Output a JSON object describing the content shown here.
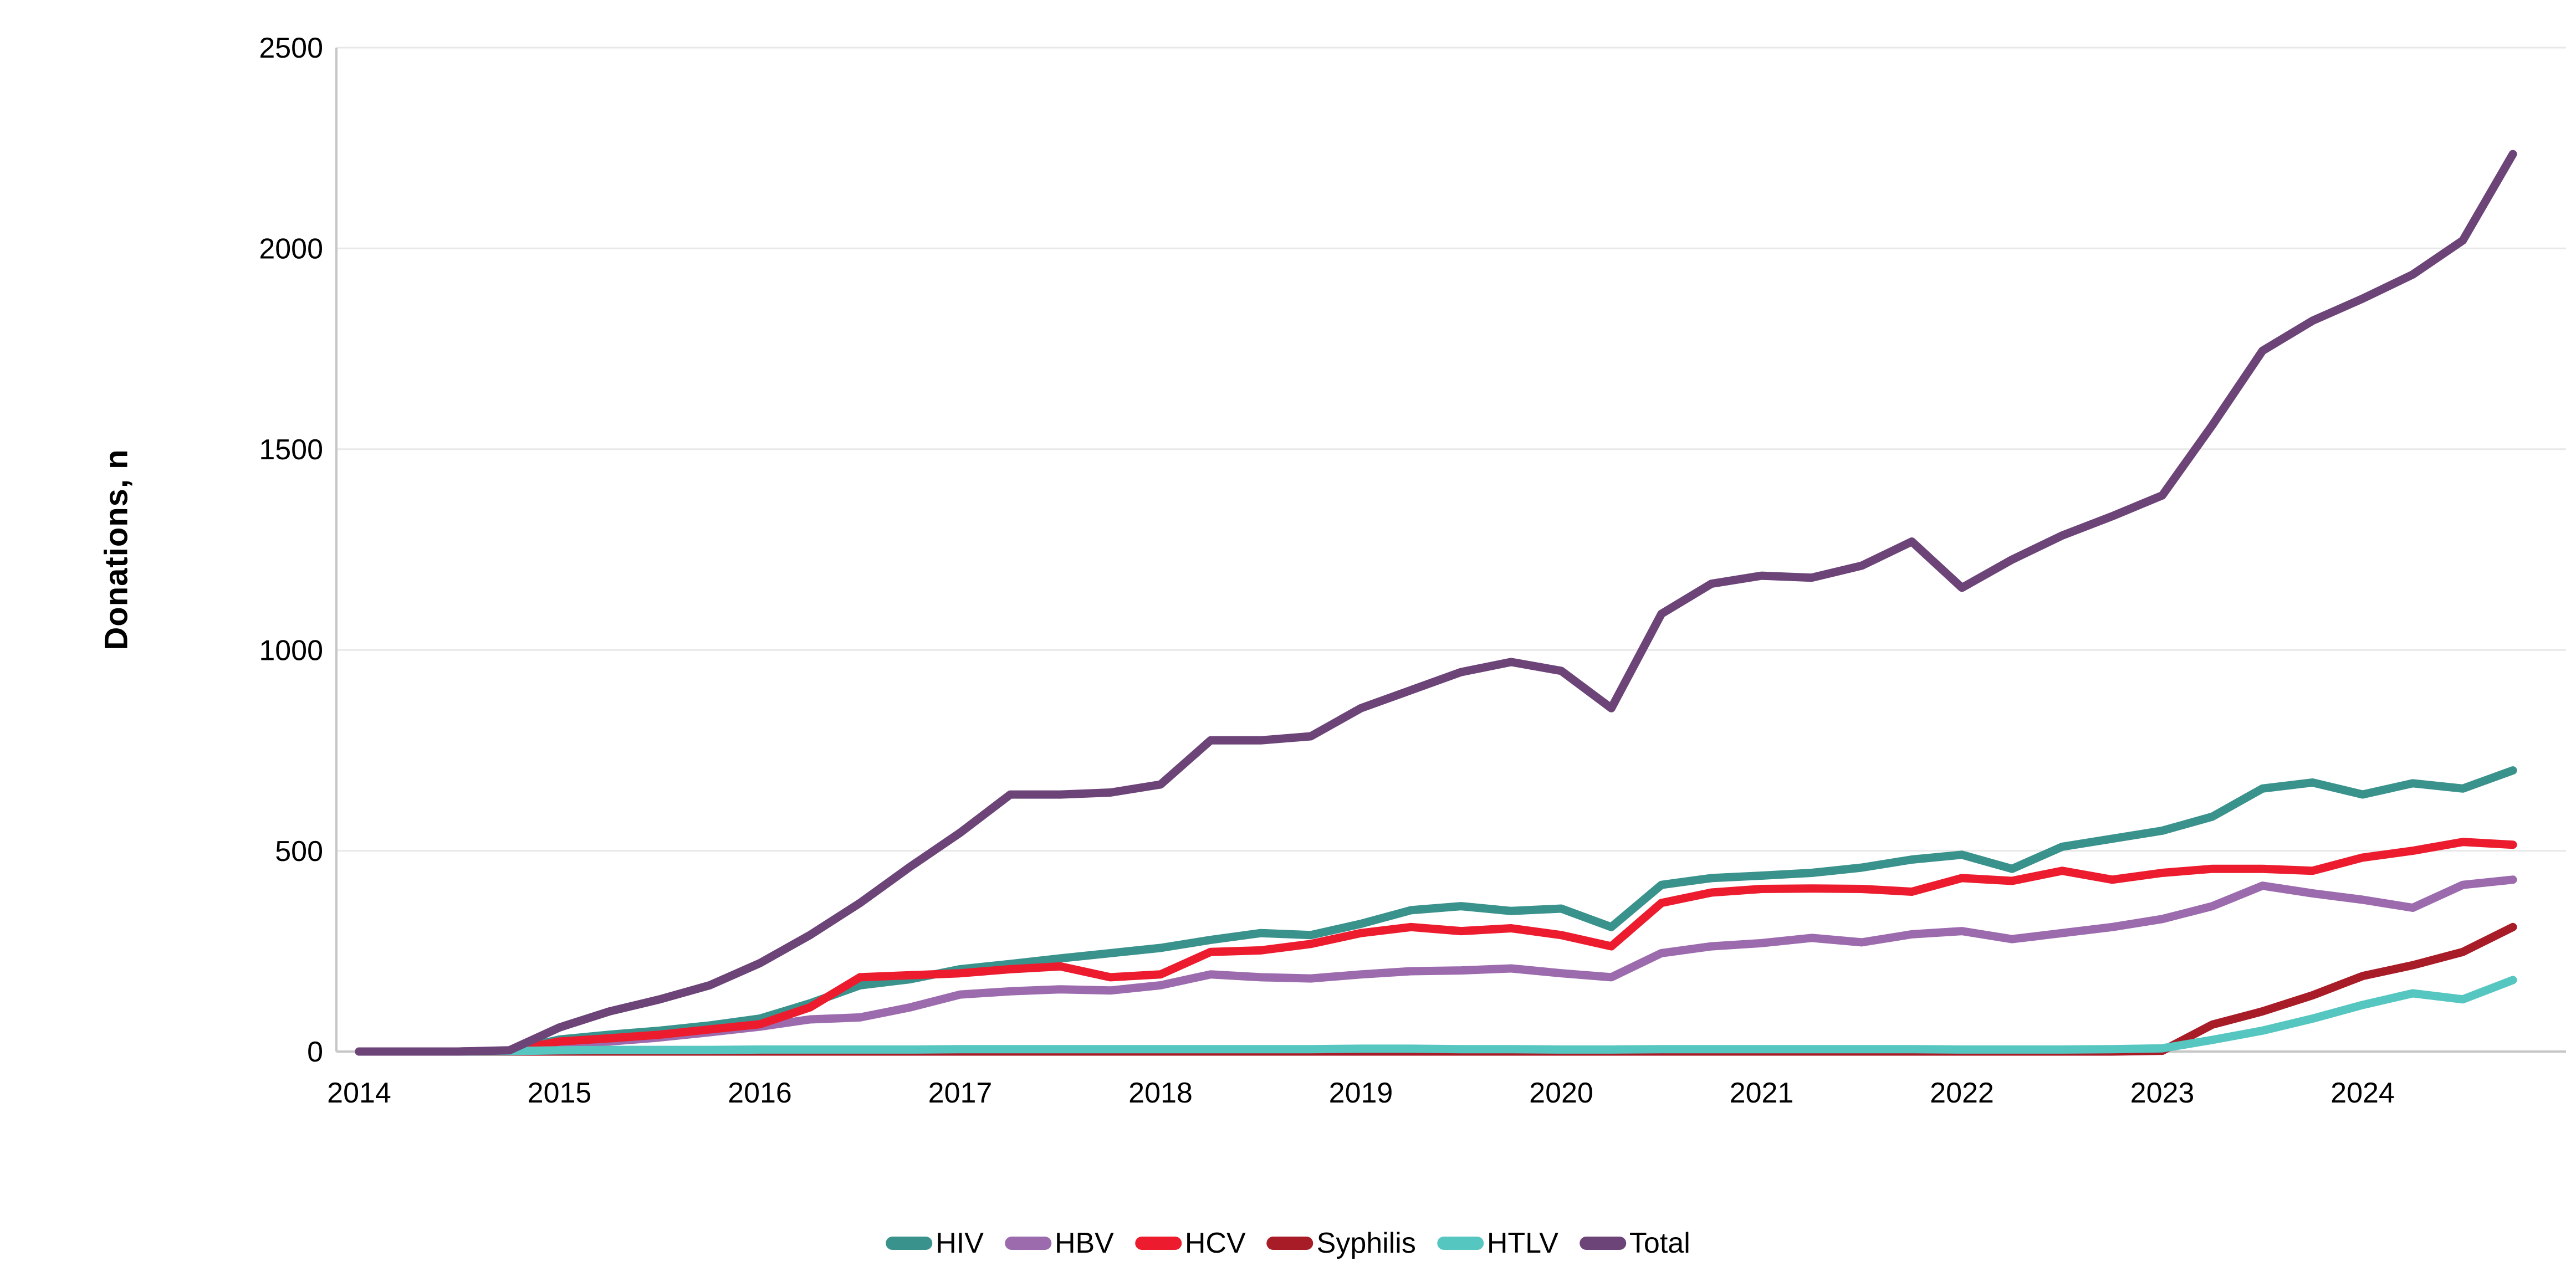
{
  "chart_data": {
    "type": "line",
    "title": "",
    "ylabel": "Donations, n",
    "xlabel": "",
    "ylim": [
      0,
      2500
    ],
    "y_tick_step": 500,
    "y_tick_labels": [
      "0",
      "500",
      "1000",
      "1500",
      "2000",
      "2500"
    ],
    "x_tick_labels": [
      "2014",
      "2015",
      "2016",
      "2017",
      "2018",
      "2019",
      "2020",
      "2021",
      "2022",
      "2023",
      "2024"
    ],
    "x_start_year": 2014,
    "x_point_interval_years": 0.25,
    "grid": "horizontal",
    "legend_position": "bottom-center",
    "series": [
      {
        "name": "HIV",
        "color": "#3A928C",
        "values": [
          0,
          0,
          0,
          2,
          30,
          42,
          52,
          65,
          82,
          120,
          165,
          180,
          205,
          218,
          232,
          245,
          258,
          278,
          295,
          290,
          318,
          352,
          362,
          350,
          356,
          310,
          415,
          432,
          438,
          445,
          458,
          478,
          490,
          455,
          510,
          530,
          550,
          585,
          655,
          670,
          640,
          668,
          655,
          700
        ]
      },
      {
        "name": "HBV",
        "color": "#9C6BAE",
        "values": [
          0,
          0,
          0,
          1,
          18,
          25,
          35,
          48,
          62,
          80,
          85,
          110,
          142,
          150,
          155,
          152,
          165,
          192,
          185,
          182,
          192,
          200,
          202,
          207,
          195,
          185,
          245,
          262,
          270,
          283,
          272,
          292,
          300,
          280,
          295,
          310,
          330,
          362,
          413,
          394,
          378,
          358,
          415,
          428
        ]
      },
      {
        "name": "HCV",
        "color": "#EC1C2E",
        "values": [
          0,
          0,
          0,
          2,
          25,
          33,
          42,
          55,
          68,
          110,
          185,
          190,
          195,
          205,
          212,
          185,
          192,
          248,
          252,
          268,
          295,
          310,
          300,
          307,
          290,
          262,
          370,
          396,
          405,
          406,
          405,
          398,
          432,
          425,
          450,
          428,
          445,
          455,
          455,
          450,
          483,
          500,
          522,
          515
        ]
      },
      {
        "name": "Syphilis",
        "color": "#A81C28",
        "values": [
          0,
          0,
          0,
          0,
          0,
          0,
          0,
          0,
          0,
          0,
          0,
          0,
          0,
          0,
          0,
          0,
          0,
          0,
          0,
          0,
          0,
          0,
          0,
          0,
          0,
          0,
          0,
          0,
          0,
          0,
          0,
          0,
          0,
          0,
          0,
          0,
          2,
          67,
          100,
          140,
          188,
          215,
          248,
          310
        ]
      },
      {
        "name": "HTLV",
        "color": "#56C6C0",
        "values": [
          0,
          0,
          0,
          1,
          3,
          4,
          4,
          4,
          5,
          5,
          5,
          5,
          6,
          6,
          6,
          6,
          6,
          6,
          6,
          6,
          7,
          7,
          6,
          6,
          5,
          5,
          6,
          6,
          6,
          6,
          6,
          6,
          5,
          5,
          5,
          6,
          8,
          29,
          52,
          82,
          116,
          145,
          130,
          178
        ]
      },
      {
        "name": "Total",
        "color": "#6C4478",
        "values": [
          0,
          0,
          0,
          3,
          60,
          100,
          130,
          165,
          220,
          290,
          370,
          460,
          545,
          640,
          640,
          645,
          665,
          775,
          775,
          785,
          855,
          900,
          945,
          970,
          948,
          855,
          1090,
          1165,
          1185,
          1180,
          1210,
          1270,
          1155,
          1225,
          1285,
          1333,
          1385,
          1560,
          1745,
          1820,
          1875,
          1935,
          2020,
          2235
        ]
      }
    ],
    "style": {
      "gridline_color": "#E8E8E8",
      "axis_color": "#C6C6C6",
      "line_width": 15
    }
  }
}
